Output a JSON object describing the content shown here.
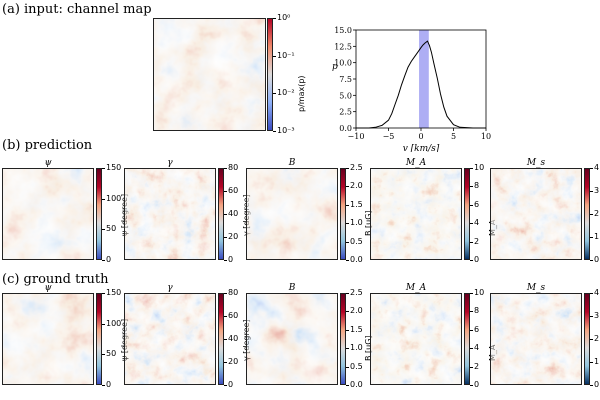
{
  "sections": {
    "input": "(a) input: channel map",
    "prediction": "(b) prediction",
    "truth": "(c) ground truth"
  },
  "channel_map": {
    "colorbar_label": "p/max(p)",
    "ticks": [
      "10⁰",
      "10⁻¹",
      "10⁻²",
      "10⁻³"
    ]
  },
  "panels": [
    {
      "title": "ψ",
      "cbar_label": "ψ [degree]",
      "ticks": [
        "150",
        "100",
        "50",
        "0"
      ]
    },
    {
      "title": "γ",
      "cbar_label": "γ [degree]",
      "ticks": [
        "80",
        "60",
        "40",
        "20",
        "0"
      ]
    },
    {
      "title": "B",
      "cbar_label": "B [uG]",
      "ticks": [
        "2.5",
        "2.0",
        "1.5",
        "1.0",
        "0.5",
        "0.0"
      ]
    },
    {
      "title": "M_A",
      "cbar_label": "M_A",
      "ticks": [
        "10",
        "8",
        "6",
        "4",
        "2",
        "0"
      ]
    },
    {
      "title": "M_s",
      "cbar_label": "M_s",
      "ticks": [
        "4",
        "3",
        "2",
        "1",
        "0"
      ]
    }
  ],
  "colors": {
    "red": "#b40426",
    "blue": "#3b4cc0",
    "mid": "#dddcdc",
    "dark_red": "#67001f"
  },
  "chart_data": {
    "type": "line",
    "xlabel": "v [km/s]",
    "ylabel": "p",
    "xlim": [
      -10,
      10
    ],
    "ylim": [
      0,
      15
    ],
    "xticks": [
      "−10",
      "−5",
      "0",
      "5",
      "10"
    ],
    "yticks": [
      "0.0",
      "2.5",
      "5.0",
      "7.5",
      "10.0",
      "12.5",
      "15.0"
    ],
    "highlight_band": [
      -0.3,
      1.2
    ],
    "x": [
      -10,
      -8,
      -7,
      -6,
      -5,
      -4.5,
      -4,
      -3.5,
      -3,
      -2.5,
      -2,
      -1.5,
      -1,
      -0.5,
      0,
      0.3,
      0.6,
      1,
      1.3,
      1.6,
      2,
      2.5,
      3,
      3.5,
      4,
      5,
      6,
      8,
      10
    ],
    "y": [
      0,
      0,
      0.1,
      0.4,
      1.2,
      2.2,
      3.6,
      5.0,
      6.6,
      8.0,
      9.3,
      10.2,
      10.9,
      11.6,
      12.3,
      12.7,
      13.0,
      13.3,
      12.6,
      11.6,
      9.8,
      7.6,
      5.2,
      3.2,
      1.8,
      0.5,
      0.1,
      0,
      0
    ]
  }
}
